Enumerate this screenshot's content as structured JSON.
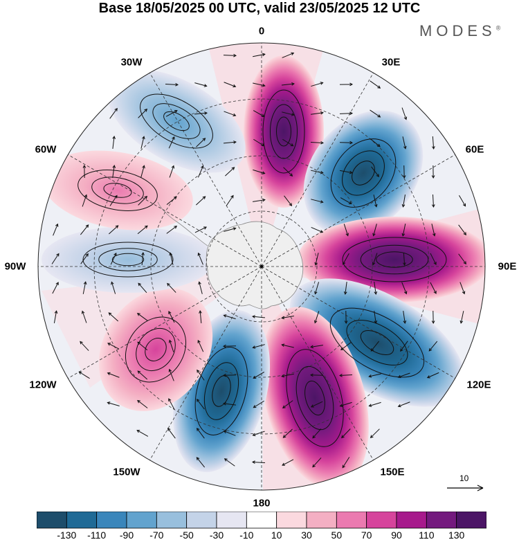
{
  "title": "Base 18/05/2025 00 UTC, valid 23/05/2025 12 UTC",
  "brand": "MODES",
  "brand_mark": "®",
  "map": {
    "projection": "south polar stereographic",
    "longitude_labels": {
      "lon_0": "0",
      "lon_30e": "30E",
      "lon_60e": "60E",
      "lon_90e": "90E",
      "lon_120e": "120E",
      "lon_150e": "150E",
      "lon_180": "180",
      "lon_150w": "150W",
      "lon_120w": "120W",
      "lon_90w": "90W",
      "lon_60w": "60W",
      "lon_30w": "30W"
    },
    "anomaly_centers": [
      {
        "lon": 5,
        "sign": "positive",
        "peak": 130
      },
      {
        "lon": 45,
        "sign": "negative",
        "peak": -130
      },
      {
        "lon": 90,
        "sign": "positive",
        "peak": 130
      },
      {
        "lon": 125,
        "sign": "negative",
        "peak": -130
      },
      {
        "lon": 162,
        "sign": "positive",
        "peak": 130
      },
      {
        "lon": 200,
        "sign": "negative",
        "peak": -130
      },
      {
        "lon": 235,
        "sign": "positive",
        "peak": 90
      },
      {
        "lon": 275,
        "sign": "negative",
        "peak": -50
      },
      {
        "lon": 300,
        "sign": "positive",
        "peak": 70
      },
      {
        "lon": 330,
        "sign": "negative",
        "peak": -70
      }
    ],
    "reference_vector": "10"
  },
  "colorbar": {
    "colors": [
      "#1d4d6b",
      "#1f6a96",
      "#3a86bb",
      "#62a3ce",
      "#98bfdd",
      "#c4d3e8",
      "#e6e6f2",
      "#ffffff",
      "#fbd9df",
      "#f4afc3",
      "#eb7ab0",
      "#d6449c",
      "#a71a8c",
      "#741a7e",
      "#4c1566"
    ],
    "tick_labels": [
      "-130",
      "-110",
      "-90",
      "-70",
      "-50",
      "-30",
      "-10",
      "10",
      "30",
      "50",
      "70",
      "90",
      "110",
      "130"
    ]
  }
}
